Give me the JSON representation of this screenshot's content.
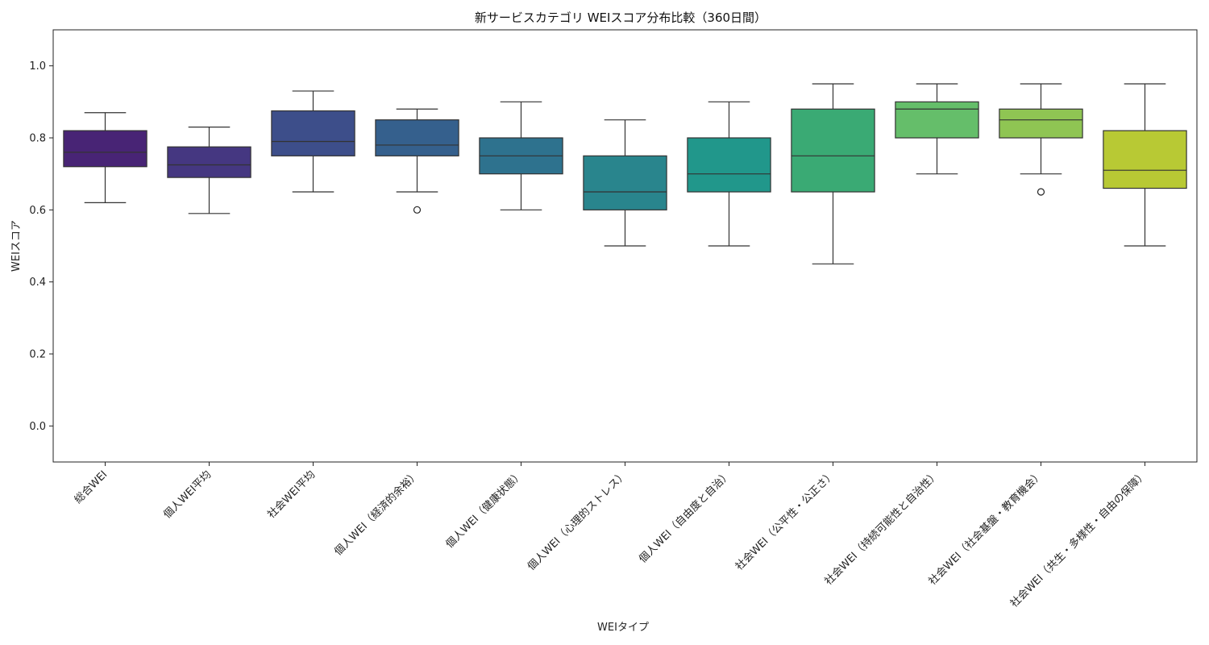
{
  "chart_data": {
    "type": "box",
    "title": "新サービスカテゴリ WEIスコア分布比較（360日間）",
    "xlabel": "WEIタイプ",
    "ylabel": "WEIスコア",
    "ylim": [
      -0.1,
      1.1
    ],
    "yticks": [
      "0.0",
      "0.2",
      "0.4",
      "0.6",
      "0.8",
      "1.0"
    ],
    "grid": false,
    "categories": [
      "総合WEI",
      "個人WEI平均",
      "社会WEI平均",
      "個人WEI（経済的余裕）",
      "個人WEI（健康状態）",
      "個人WEI（心理的ストレス）",
      "個人WEI（自由度と自治）",
      "社会WEI（公平性・公正さ）",
      "社会WEI（持続可能性と自治性）",
      "社会WEI（社会基盤・教育機会）",
      "社会WEI（共生・多様性・自由の保障）"
    ],
    "boxes": [
      {
        "whisker_low": 0.62,
        "q1": 0.72,
        "median": 0.76,
        "q3": 0.82,
        "whisker_high": 0.87,
        "outliers": [],
        "color": "#482475"
      },
      {
        "whisker_low": 0.59,
        "q1": 0.69,
        "median": 0.725,
        "q3": 0.775,
        "whisker_high": 0.83,
        "outliers": [],
        "color": "#453781"
      },
      {
        "whisker_low": 0.65,
        "q1": 0.75,
        "median": 0.79,
        "q3": 0.875,
        "whisker_high": 0.93,
        "outliers": [],
        "color": "#3d4e8a"
      },
      {
        "whisker_low": 0.65,
        "q1": 0.75,
        "median": 0.78,
        "q3": 0.85,
        "whisker_high": 0.88,
        "outliers": [
          0.6
        ],
        "color": "#35608d"
      },
      {
        "whisker_low": 0.6,
        "q1": 0.7,
        "median": 0.75,
        "q3": 0.8,
        "whisker_high": 0.9,
        "outliers": [],
        "color": "#2e728e"
      },
      {
        "whisker_low": 0.5,
        "q1": 0.6,
        "median": 0.65,
        "q3": 0.75,
        "whisker_high": 0.85,
        "outliers": [],
        "color": "#29858d"
      },
      {
        "whisker_low": 0.5,
        "q1": 0.65,
        "median": 0.7,
        "q3": 0.8,
        "whisker_high": 0.9,
        "outliers": [],
        "color": "#21978b"
      },
      {
        "whisker_low": 0.45,
        "q1": 0.65,
        "median": 0.75,
        "q3": 0.88,
        "whisker_high": 0.95,
        "outliers": [],
        "color": "#3aaa74"
      },
      {
        "whisker_low": 0.7,
        "q1": 0.8,
        "median": 0.88,
        "q3": 0.9,
        "whisker_high": 0.95,
        "outliers": [],
        "color": "#65be6a"
      },
      {
        "whisker_low": 0.7,
        "q1": 0.8,
        "median": 0.85,
        "q3": 0.88,
        "whisker_high": 0.95,
        "outliers": [
          0.65
        ],
        "color": "#8fc553"
      },
      {
        "whisker_low": 0.5,
        "q1": 0.66,
        "median": 0.71,
        "q3": 0.82,
        "whisker_high": 0.95,
        "outliers": [],
        "color": "#b8c934"
      }
    ]
  }
}
